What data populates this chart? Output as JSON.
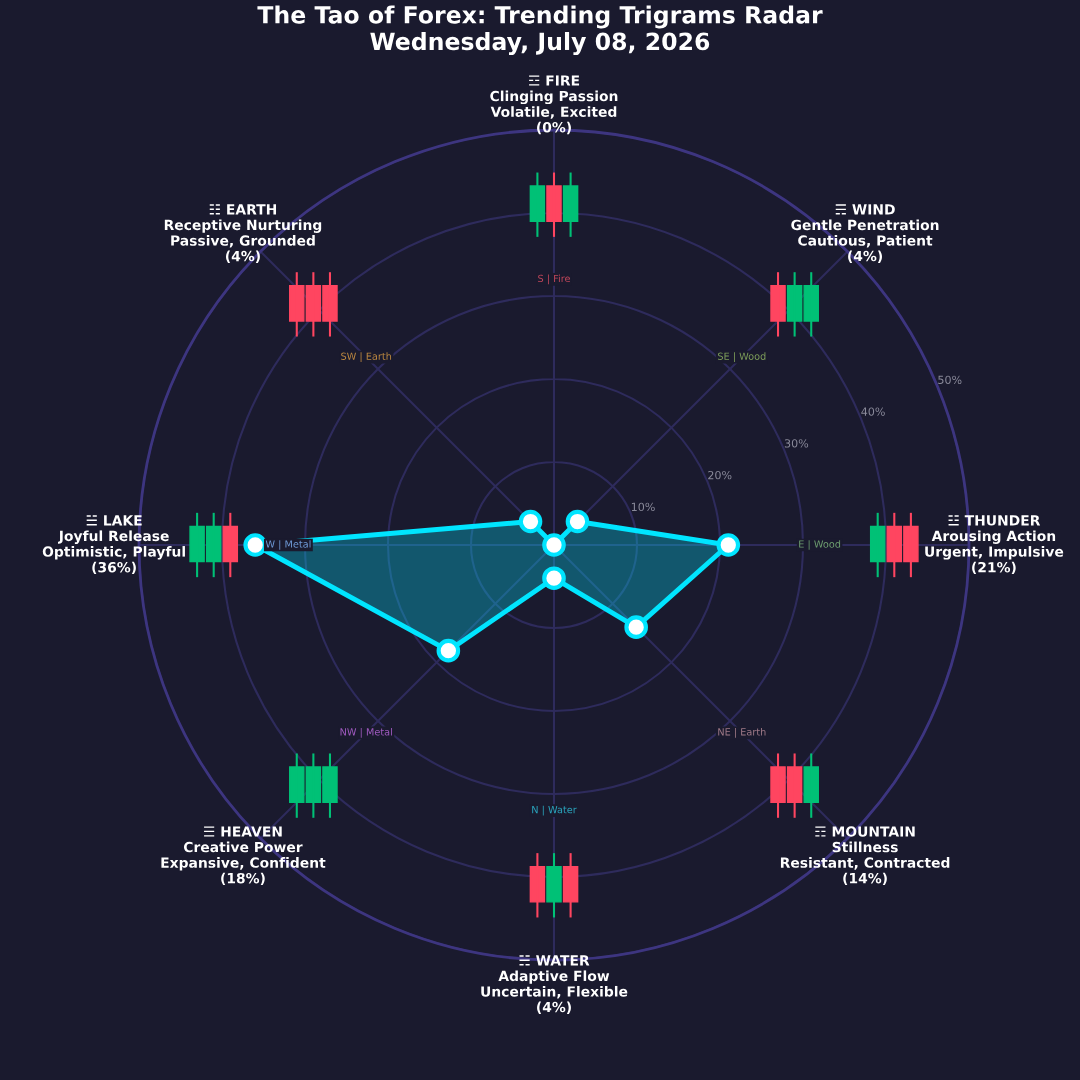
{
  "chart_data": {
    "type": "radar",
    "title": "The Tao of Forex: Trending Trigrams Radar\nWednesday, July 08, 2026",
    "categories": [
      "☲ FIRE\nClinging Passion\nVolatile, Excited\n(0%)",
      "☴ WIND\nGentle Penetration\nCautious, Patient\n(4%)",
      "☳ THUNDER\nArousing Action\nUrgent, Impulsive\n(21%)",
      "☶ MOUNTAIN\nStillness\nResistant, Contracted\n(14%)",
      "☵ WATER\nAdaptive Flow\nUncertain, Flexible\n(4%)",
      "☰ HEAVEN\nCreative Power\nExpansive, Confident\n(18%)",
      "☱ LAKE\nJoyful Release\nOptimistic, Playful\n(36%)",
      "☷ EARTH\nReceptive Nurturing\nPassive, Grounded\n(4%)"
    ],
    "series": [
      {
        "color": "#00e5ff",
        "values": [
          0,
          4,
          21,
          14,
          4,
          18,
          36,
          4
        ]
      }
    ],
    "ylim": [
      0,
      50
    ],
    "yticks": [
      {
        "value": 10,
        "label": "10%"
      },
      {
        "value": 20,
        "label": "20%"
      },
      {
        "value": 30,
        "label": "30%"
      },
      {
        "value": 40,
        "label": "40%"
      },
      {
        "value": 50,
        "label": "50%"
      }
    ],
    "grid": true,
    "marker": "circle",
    "line_style": "solid",
    "annotations": [
      "S | Fire",
      "SE | Wood",
      "E | Wood",
      "NE | Earth",
      "N | Water",
      "NW | Metal",
      "W | Metal",
      "SW | Earth"
    ]
  }
}
